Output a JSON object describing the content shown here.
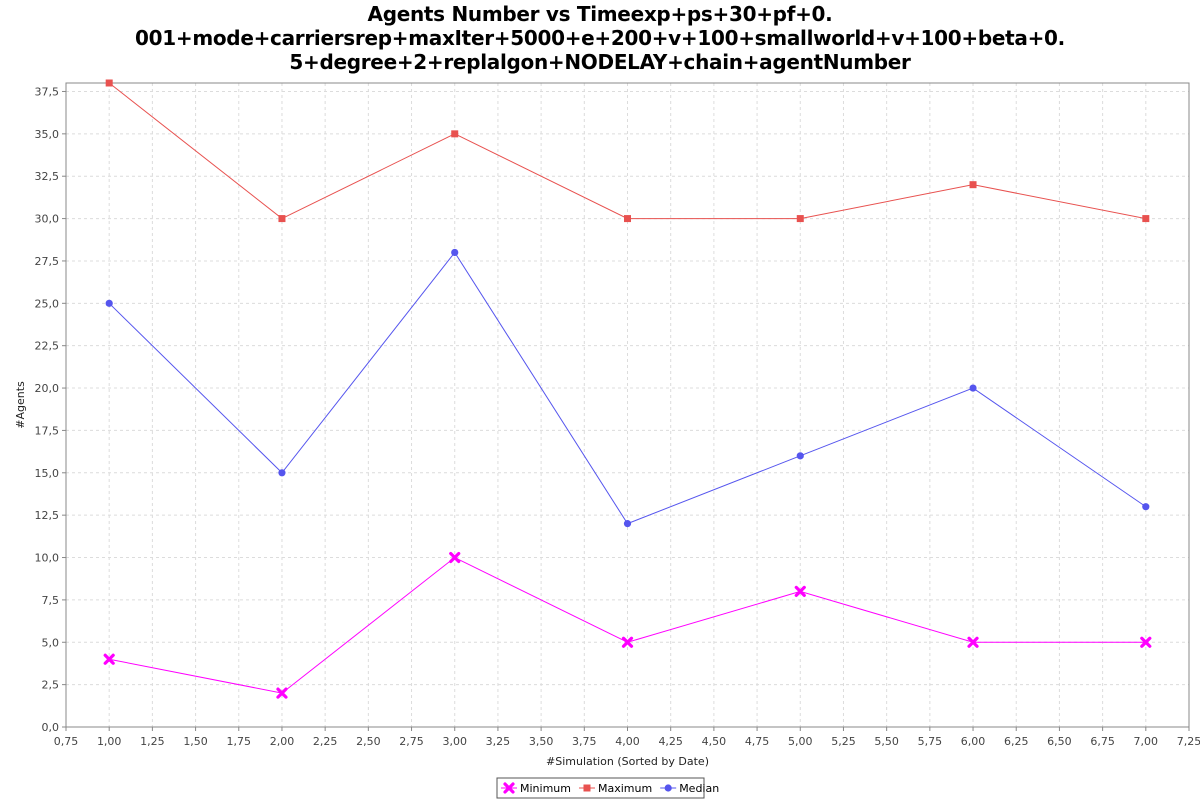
{
  "chart_data": {
    "type": "line",
    "title": [
      "Agents Number vs Timeexp+ps+30+pf+0.",
      "001+mode+carriersrep+maxIter+5000+e+200+v+100+smallworld+v+100+beta+0.",
      "5+degree+2+replalgon+NODELAY+chain+agentNumber"
    ],
    "xlabel": "#Simulation (Sorted by Date)",
    "ylabel": "#Agents",
    "xlim": [
      0.75,
      7.25
    ],
    "ylim": [
      0,
      38
    ],
    "xticks": [
      0.75,
      1.0,
      1.25,
      1.5,
      1.75,
      2.0,
      2.25,
      2.5,
      2.75,
      3.0,
      3.25,
      3.5,
      3.75,
      4.0,
      4.25,
      4.5,
      4.75,
      5.0,
      5.25,
      5.5,
      5.75,
      6.0,
      6.25,
      6.5,
      6.75,
      7.0,
      7.25
    ],
    "xtick_labels": [
      "0,75",
      "1,00",
      "1,25",
      "1,50",
      "1,75",
      "2,00",
      "2,25",
      "2,50",
      "2,75",
      "3,00",
      "3,25",
      "3,50",
      "3,75",
      "4,00",
      "4,25",
      "4,50",
      "4,75",
      "5,00",
      "5,25",
      "5,50",
      "5,75",
      "6,00",
      "6,25",
      "6,50",
      "6,75",
      "7,00",
      "7,25"
    ],
    "yticks": [
      0,
      2.5,
      5,
      7.5,
      10,
      12.5,
      15,
      17.5,
      20,
      22.5,
      25,
      27.5,
      30,
      32.5,
      35,
      37.5
    ],
    "ytick_labels": [
      "0,0",
      "2,5",
      "5,0",
      "7,5",
      "10,0",
      "12,5",
      "15,0",
      "17,5",
      "20,0",
      "22,5",
      "25,0",
      "27,5",
      "30,0",
      "32,5",
      "35,0",
      "37,5"
    ],
    "grid": true,
    "legend_position": "bottom-center",
    "x": [
      1,
      2,
      3,
      4,
      5,
      6,
      7
    ],
    "series": [
      {
        "name": "Minimum",
        "color": "#ff00ff",
        "marker": "x",
        "values": [
          4,
          2,
          10,
          5,
          8,
          5,
          5
        ]
      },
      {
        "name": "Maximum",
        "color": "#e8514f",
        "marker": "square",
        "values": [
          38,
          30,
          35,
          30,
          30,
          32,
          30
        ]
      },
      {
        "name": "Median",
        "color": "#5555ee",
        "marker": "circle",
        "values": [
          25,
          15,
          28,
          12,
          16,
          20,
          13
        ]
      }
    ]
  }
}
